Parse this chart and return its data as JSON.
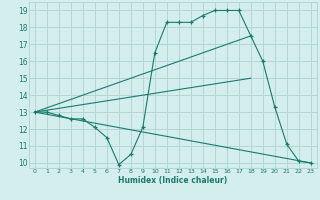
{
  "xlabel": "Humidex (Indice chaleur)",
  "xlim": [
    -0.5,
    23.5
  ],
  "ylim": [
    9.7,
    19.5
  ],
  "yticks": [
    10,
    11,
    12,
    13,
    14,
    15,
    16,
    17,
    18,
    19
  ],
  "xticks": [
    0,
    1,
    2,
    3,
    4,
    5,
    6,
    7,
    8,
    9,
    10,
    11,
    12,
    13,
    14,
    15,
    16,
    17,
    18,
    19,
    20,
    21,
    22,
    23
  ],
  "background_color": "#d4eeed",
  "grid_color": "#b2d8d4",
  "line_color": "#1a7a6e",
  "main_series": {
    "x": [
      0,
      1,
      2,
      3,
      4,
      5,
      6,
      7,
      8,
      9,
      10,
      11,
      12,
      13,
      14,
      15,
      16,
      17,
      18,
      19,
      20,
      21,
      22,
      23
    ],
    "y": [
      13.0,
      13.0,
      12.8,
      12.6,
      12.6,
      12.1,
      11.5,
      9.9,
      10.5,
      12.1,
      16.5,
      18.3,
      18.3,
      18.3,
      18.7,
      19.0,
      19.0,
      19.0,
      17.5,
      16.0,
      13.3,
      11.1,
      10.1,
      10.0
    ]
  },
  "ref_lines": [
    {
      "x": [
        0,
        18
      ],
      "y": [
        13.0,
        17.5
      ]
    },
    {
      "x": [
        0,
        18
      ],
      "y": [
        13.0,
        15.0
      ]
    },
    {
      "x": [
        0,
        23
      ],
      "y": [
        13.0,
        10.0
      ]
    }
  ]
}
